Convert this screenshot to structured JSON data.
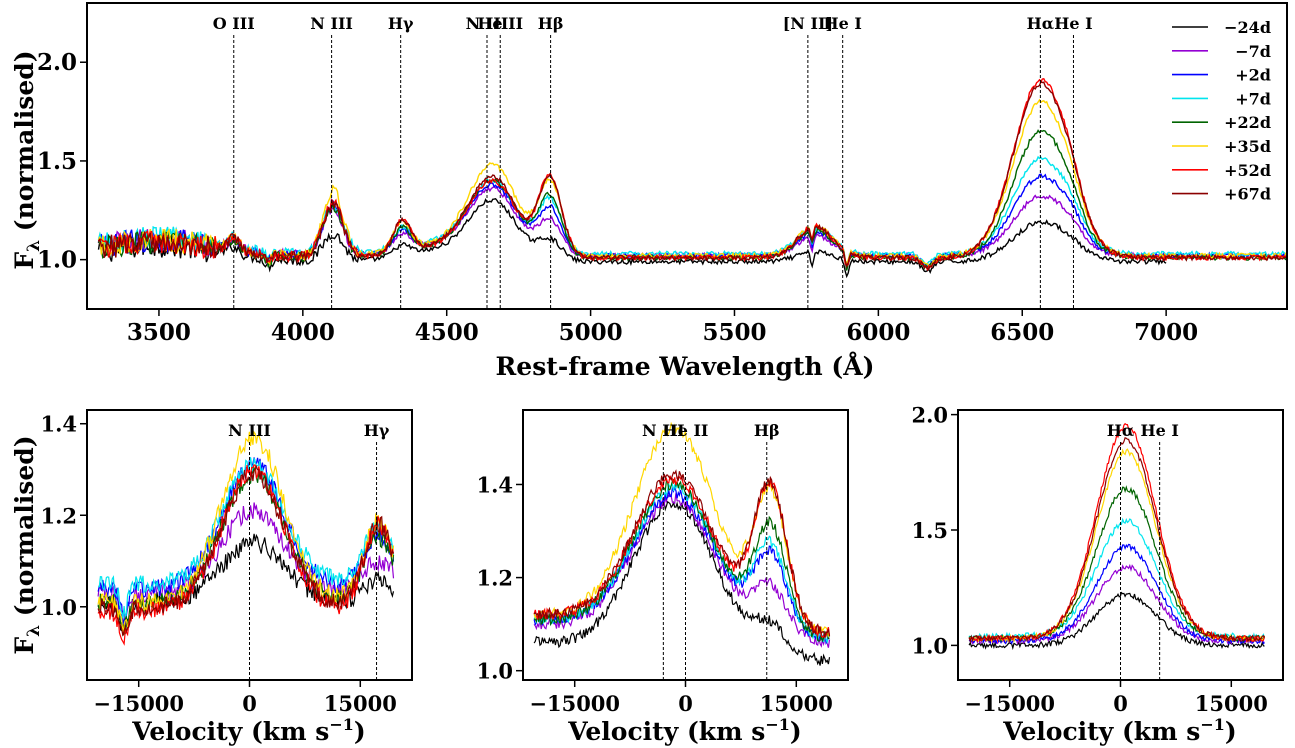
{
  "colors": {
    "-24d": "#000000",
    "-7d": "#9400d3",
    "+2d": "#0000ff",
    "+7d": "#00e5ee",
    "+22d": "#006400",
    "+35d": "#ffd700",
    "+52d": "#ff0000",
    "+67d": "#8b0000"
  },
  "chart_data": [
    {
      "type": "line",
      "xlabel": "Rest-frame Wavelength (Å)",
      "ylabel": "F_λ  (normalised)",
      "xlim": [
        3250,
        7420
      ],
      "ylim": [
        0.75,
        2.3
      ],
      "xticks": [
        3500,
        4000,
        4500,
        5000,
        5500,
        6000,
        6500,
        7000
      ],
      "yticks": [
        1.0,
        1.5,
        2.0
      ],
      "ytick_labels": [
        "1.0",
        "1.5",
        "2.0"
      ],
      "legend_position": "top-right",
      "line_markers": [
        {
          "label": "O III",
          "x": 3760
        },
        {
          "label": "N III",
          "x": 4100
        },
        {
          "label": "Hγ",
          "x": 4340
        },
        {
          "label": "N III",
          "x": 4640
        },
        {
          "label": "He II",
          "x": 4686
        },
        {
          "label": "Hβ",
          "x": 4861
        },
        {
          "label": "[N II]",
          "x": 5755
        },
        {
          "label": "He I",
          "x": 5876
        },
        {
          "label": "Hα",
          "x": 6563
        },
        {
          "label": "He I",
          "x": 6678
        }
      ],
      "series": [
        {
          "name": "−24d",
          "key": "-24d",
          "range": [
            3290,
            7000
          ],
          "continuum": 0.99,
          "amps": [
            0.04,
            0.14,
            0.05,
            0.3,
            0.1,
            0.05,
            0.2,
            0.02
          ]
        },
        {
          "name": "−7d",
          "key": "-7d",
          "range": [
            3290,
            7000
          ],
          "continuum": 1.02,
          "amps": [
            0.05,
            0.24,
            0.08,
            0.33,
            0.17,
            0.1,
            0.3,
            0.04
          ]
        },
        {
          "name": "+2d",
          "key": "+2d",
          "range": [
            3290,
            7420
          ],
          "continuum": 1.02,
          "amps": [
            0.06,
            0.26,
            0.1,
            0.35,
            0.23,
            0.12,
            0.4,
            0.05
          ]
        },
        {
          "name": "+7d",
          "key": "+7d",
          "range": [
            3290,
            7420
          ],
          "continuum": 1.03,
          "amps": [
            0.06,
            0.25,
            0.1,
            0.36,
            0.26,
            0.13,
            0.48,
            0.05
          ]
        },
        {
          "name": "+22d",
          "key": "+22d",
          "range": [
            3290,
            7420
          ],
          "continuum": 1.01,
          "amps": [
            0.06,
            0.26,
            0.12,
            0.38,
            0.3,
            0.14,
            0.64,
            0.06
          ]
        },
        {
          "name": "+35d",
          "key": "+35d",
          "range": [
            3290,
            7420
          ],
          "continuum": 1.02,
          "amps": [
            0.06,
            0.33,
            0.14,
            0.45,
            0.36,
            0.15,
            0.78,
            0.06
          ]
        },
        {
          "name": "+52d",
          "key": "+52d",
          "range": [
            3290,
            7420
          ],
          "continuum": 1.01,
          "amps": [
            0.07,
            0.28,
            0.16,
            0.38,
            0.4,
            0.16,
            0.9,
            0.07
          ]
        },
        {
          "name": "+67d",
          "key": "+67d",
          "range": [
            3290,
            7420
          ],
          "continuum": 1.01,
          "amps": [
            0.07,
            0.27,
            0.16,
            0.4,
            0.39,
            0.16,
            0.88,
            0.07
          ]
        }
      ]
    },
    {
      "type": "line",
      "xlabel": "Velocity (km s⁻¹)",
      "ylabel": "F_λ  (normalised)",
      "xlim": [
        -22000,
        22000
      ],
      "ylim": [
        0.84,
        1.43
      ],
      "xticks": [
        -15000,
        0,
        15000
      ],
      "yticks": [
        1.0,
        1.2,
        1.4
      ],
      "ytick_labels": [
        "1.0",
        "1.2",
        "1.4"
      ],
      "line_markers": [
        {
          "label": "N III",
          "x": 0
        },
        {
          "label": "Hγ",
          "x": 17200
        }
      ],
      "series": [
        {
          "key": "-24d",
          "peak_a": 0.13,
          "peak_b": 0.05,
          "base": 1.01
        },
        {
          "key": "-7d",
          "peak_a": 0.18,
          "peak_b": 0.07,
          "base": 1.03
        },
        {
          "key": "+2d",
          "peak_a": 0.27,
          "peak_b": 0.12,
          "base": 1.04
        },
        {
          "key": "+7d",
          "peak_a": 0.26,
          "peak_b": 0.13,
          "base": 1.05
        },
        {
          "key": "+22d",
          "peak_a": 0.28,
          "peak_b": 0.14,
          "base": 1.01
        },
        {
          "key": "+35d",
          "peak_a": 0.36,
          "peak_b": 0.18,
          "base": 1.01
        },
        {
          "key": "+52d",
          "peak_a": 0.31,
          "peak_b": 0.19,
          "base": 0.99
        },
        {
          "key": "+67d",
          "peak_a": 0.29,
          "peak_b": 0.18,
          "base": 1.0
        }
      ]
    },
    {
      "type": "line",
      "xlabel": "Velocity (km s⁻¹)",
      "ylabel": "",
      "xlim": [
        -22000,
        22000
      ],
      "ylim": [
        0.98,
        1.56
      ],
      "xticks": [
        -15000,
        0,
        15000
      ],
      "yticks": [
        1.0,
        1.2,
        1.4
      ],
      "ytick_labels": [
        "1.0",
        "1.2",
        "1.4"
      ],
      "line_markers": [
        {
          "label": "N III",
          "x": -3000
        },
        {
          "label": "He II",
          "x": 0
        },
        {
          "label": "Hβ",
          "x": 11000
        }
      ],
      "series": [
        {
          "key": "-24d",
          "peak_a": 0.32,
          "peak_b": 0.06,
          "base": 1.04
        },
        {
          "key": "-7d",
          "peak_a": 0.29,
          "peak_b": 0.1,
          "base": 1.08
        },
        {
          "key": "+2d",
          "peak_a": 0.29,
          "peak_b": 0.16,
          "base": 1.09
        },
        {
          "key": "+7d",
          "peak_a": 0.3,
          "peak_b": 0.18,
          "base": 1.09
        },
        {
          "key": "+22d",
          "peak_a": 0.31,
          "peak_b": 0.22,
          "base": 1.09
        },
        {
          "key": "+35d",
          "peak_a": 0.42,
          "peak_b": 0.28,
          "base": 1.1
        },
        {
          "key": "+52d",
          "peak_a": 0.31,
          "peak_b": 0.3,
          "base": 1.1
        },
        {
          "key": "+67d",
          "peak_a": 0.32,
          "peak_b": 0.3,
          "base": 1.1
        }
      ]
    },
    {
      "type": "line",
      "xlabel": "Velocity (km s⁻¹)",
      "ylabel": "",
      "xlim": [
        -22000,
        22000
      ],
      "ylim": [
        0.85,
        2.02
      ],
      "xticks": [
        -15000,
        0,
        15000
      ],
      "yticks": [
        1.0,
        1.5,
        2.0
      ],
      "ytick_labels": [
        "1.0",
        "1.5",
        "2.0"
      ],
      "line_markers": [
        {
          "label": "Hα",
          "x": 0
        },
        {
          "label": "He I",
          "x": 5300
        }
      ],
      "series": [
        {
          "key": "-24d",
          "peak_a": 0.22,
          "peak_b": 0.0,
          "base": 1.0
        },
        {
          "key": "-7d",
          "peak_a": 0.32,
          "peak_b": 0.0,
          "base": 1.02
        },
        {
          "key": "+2d",
          "peak_a": 0.41,
          "peak_b": 0.0,
          "base": 1.02
        },
        {
          "key": "+7d",
          "peak_a": 0.5,
          "peak_b": 0.0,
          "base": 1.04
        },
        {
          "key": "+22d",
          "peak_a": 0.65,
          "peak_b": 0.0,
          "base": 1.03
        },
        {
          "key": "+35d",
          "peak_a": 0.81,
          "peak_b": 0.0,
          "base": 1.03
        },
        {
          "key": "+52d",
          "peak_a": 0.92,
          "peak_b": 0.0,
          "base": 1.03
        },
        {
          "key": "+67d",
          "peak_a": 0.86,
          "peak_b": 0.0,
          "base": 1.03
        }
      ]
    }
  ]
}
